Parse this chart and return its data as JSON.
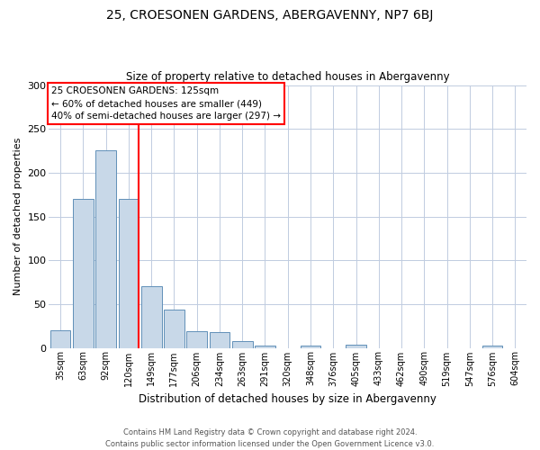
{
  "title": "25, CROESONEN GARDENS, ABERGAVENNY, NP7 6BJ",
  "subtitle": "Size of property relative to detached houses in Abergavenny",
  "xlabel": "Distribution of detached houses by size in Abergavenny",
  "ylabel": "Number of detached properties",
  "bar_labels": [
    "35sqm",
    "63sqm",
    "92sqm",
    "120sqm",
    "149sqm",
    "177sqm",
    "206sqm",
    "234sqm",
    "263sqm",
    "291sqm",
    "320sqm",
    "348sqm",
    "376sqm",
    "405sqm",
    "433sqm",
    "462sqm",
    "490sqm",
    "519sqm",
    "547sqm",
    "576sqm",
    "604sqm"
  ],
  "bar_values": [
    20,
    170,
    226,
    170,
    70,
    44,
    19,
    18,
    8,
    3,
    0,
    3,
    0,
    4,
    0,
    0,
    0,
    0,
    0,
    3,
    0
  ],
  "bar_color": "#c8d8e8",
  "bar_edge_color": "#6090b8",
  "vline_x_index": 3,
  "vline_color": "red",
  "annotation_text": "25 CROESONEN GARDENS: 125sqm\n← 60% of detached houses are smaller (449)\n40% of semi-detached houses are larger (297) →",
  "annotation_box_color": "white",
  "annotation_box_edge_color": "red",
  "ylim": [
    0,
    300
  ],
  "yticks": [
    0,
    50,
    100,
    150,
    200,
    250,
    300
  ],
  "background_color": "#ffffff",
  "grid_color": "#c0cce0",
  "footer_line1": "Contains HM Land Registry data © Crown copyright and database right 2024.",
  "footer_line2": "Contains public sector information licensed under the Open Government Licence v3.0."
}
